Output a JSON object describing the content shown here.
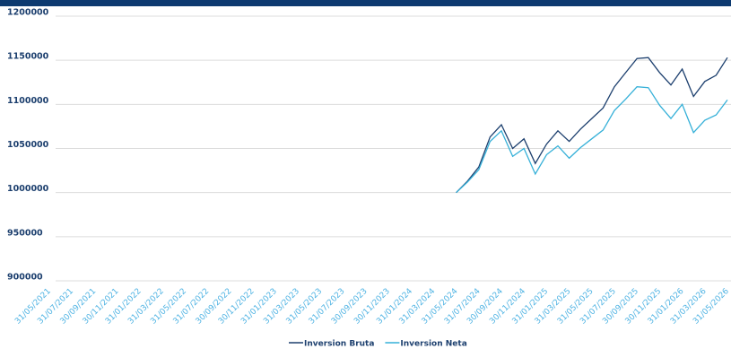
{
  "chart_data": {
    "type": "line",
    "categories": [
      "31/05/2021",
      null,
      "31/07/2021",
      null,
      "30/09/2021",
      null,
      "30/11/2021",
      null,
      "31/01/2022",
      null,
      "31/03/2022",
      null,
      "31/05/2022",
      null,
      "31/07/2022",
      null,
      "30/09/2022",
      null,
      "30/11/2022",
      null,
      "31/01/2023",
      null,
      "31/03/2023",
      null,
      "31/05/2023",
      null,
      "31/07/2023",
      null,
      "30/09/2023",
      null,
      "30/11/2023",
      null,
      "31/01/2024",
      null,
      "31/03/2024",
      null,
      "31/05/2024",
      null,
      "31/07/2024",
      null,
      "30/09/2024",
      null,
      "30/11/2024",
      null,
      "31/01/2025",
      null,
      "31/03/2025",
      null,
      "31/05/2025",
      null,
      "31/07/2025",
      null,
      "30/09/2025",
      null,
      "30/11/2025",
      null,
      "31/01/2026",
      null,
      "31/03/2026",
      null,
      "31/05/2026"
    ],
    "series": [
      {
        "name": "Inversion Bruta",
        "color": "#1c3f6e",
        "values": [
          null,
          null,
          null,
          null,
          null,
          null,
          null,
          null,
          null,
          null,
          null,
          null,
          null,
          null,
          null,
          null,
          null,
          null,
          null,
          null,
          null,
          null,
          null,
          null,
          null,
          null,
          null,
          null,
          null,
          null,
          null,
          null,
          null,
          null,
          null,
          null,
          1000000,
          1013000,
          1029000,
          1063000,
          1077000,
          1050000,
          1061000,
          1033000,
          1055000,
          1070000,
          1058000,
          1072000,
          1084000,
          1096000,
          1120000,
          1136000,
          1152000,
          1153000,
          1136000,
          1122000,
          1140000,
          1109000,
          1126000,
          1133000,
          1153000
        ]
      },
      {
        "name": "Inversion Neta",
        "color": "#35b0d8",
        "values": [
          null,
          null,
          null,
          null,
          null,
          null,
          null,
          null,
          null,
          null,
          null,
          null,
          null,
          null,
          null,
          null,
          null,
          null,
          null,
          null,
          null,
          null,
          null,
          null,
          null,
          null,
          null,
          null,
          null,
          null,
          null,
          null,
          null,
          null,
          null,
          null,
          1000000,
          1012000,
          1026000,
          1058000,
          1070000,
          1041000,
          1050000,
          1021000,
          1043000,
          1053000,
          1039000,
          1051000,
          1061000,
          1071000,
          1093000,
          1106000,
          1120000,
          1119000,
          1099000,
          1084000,
          1100000,
          1068000,
          1082000,
          1088000,
          1105000
        ]
      }
    ],
    "ylim": [
      900000,
      1200000
    ],
    "yticks": [
      900000,
      950000,
      1000000,
      1050000,
      1100000,
      1150000,
      1200000
    ],
    "grid": true,
    "legend": "bottom"
  }
}
